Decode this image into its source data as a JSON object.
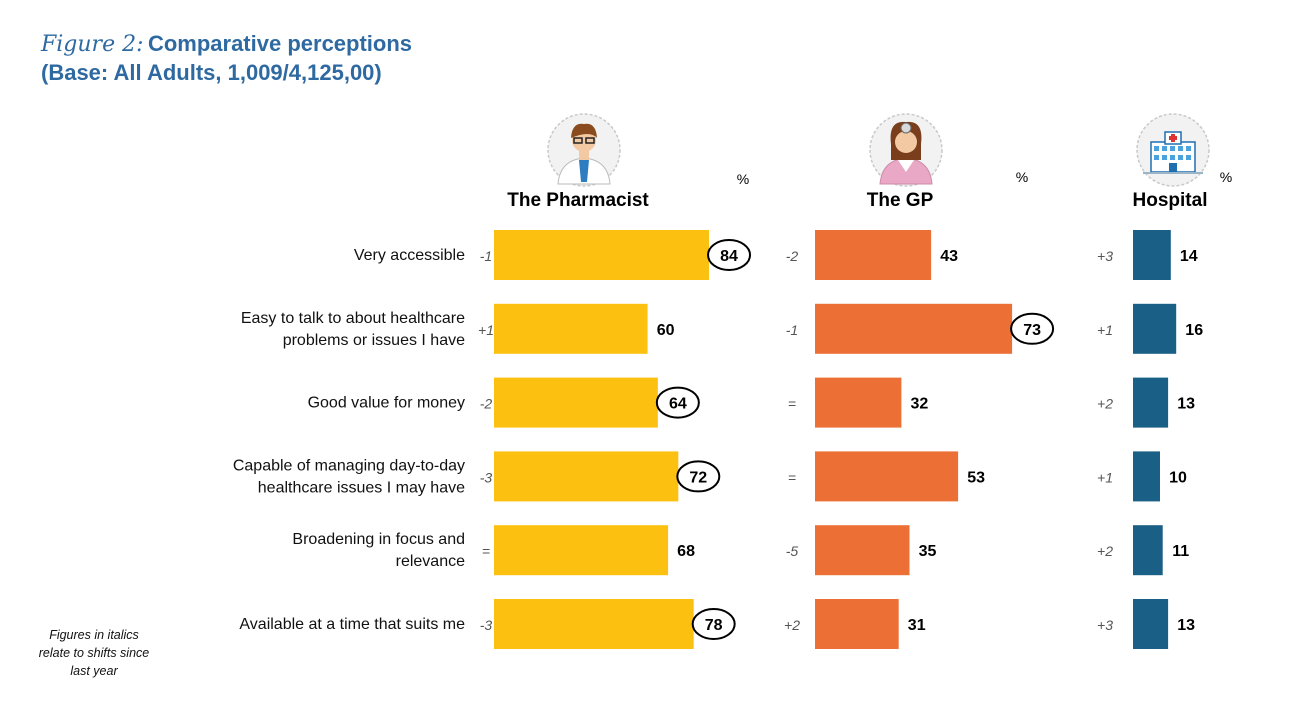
{
  "title": {
    "prefix": "Figure 2:",
    "main": "Comparative perceptions",
    "base": "(Base: All Adults, 1,009/4,125,00)"
  },
  "footnote": "Figures in italics relate to  shifts since last year",
  "chart_data": {
    "type": "bar",
    "orientation": "horizontal",
    "unit_label": "%",
    "categories": [
      [
        "Very accessible"
      ],
      [
        "Easy to talk to about healthcare",
        "problems or issues I have"
      ],
      [
        "Good value for money"
      ],
      [
        "Capable of managing day-to-day",
        "healthcare issues I may have"
      ],
      [
        "Broadening in focus and",
        "relevance"
      ],
      [
        "Available at a time that suits me"
      ]
    ],
    "series": [
      {
        "name": "The Pharmacist",
        "icon": "pharmacist-icon",
        "color": "#fcc010",
        "values": [
          84,
          60,
          64,
          72,
          68,
          78
        ],
        "shifts": [
          "-1",
          "+1",
          "-2",
          "-3",
          "=",
          "-3"
        ],
        "circled": [
          true,
          false,
          true,
          true,
          false,
          true
        ]
      },
      {
        "name": "The GP",
        "icon": "doctor-icon",
        "color": "#ec7035",
        "values": [
          43,
          73,
          32,
          53,
          35,
          31
        ],
        "shifts": [
          "-2",
          "-1",
          "=",
          "=",
          "-5",
          "+2"
        ],
        "circled": [
          false,
          true,
          false,
          false,
          false,
          false
        ]
      },
      {
        "name": "Hospital",
        "icon": "hospital-icon",
        "color": "#1a5f86",
        "values": [
          14,
          16,
          13,
          10,
          11,
          13
        ],
        "shifts": [
          "+3",
          "+1",
          "+2",
          "+1",
          "+2",
          "+3"
        ],
        "circled": [
          false,
          false,
          false,
          false,
          false,
          false
        ]
      }
    ]
  }
}
